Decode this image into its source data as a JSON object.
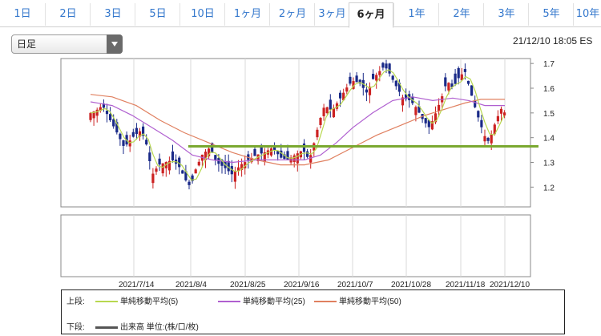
{
  "tabs": [
    {
      "label": "1日",
      "active": false
    },
    {
      "label": "2日",
      "active": false
    },
    {
      "label": "3日",
      "active": false
    },
    {
      "label": "5日",
      "active": false
    },
    {
      "label": "10日",
      "active": false
    },
    {
      "label": "1ヶ月",
      "active": false
    },
    {
      "label": "2ヶ月",
      "active": false
    },
    {
      "label": "3ヶ月",
      "active": false
    },
    {
      "label": "6ヶ月",
      "active": true
    },
    {
      "label": "1年",
      "active": false
    },
    {
      "label": "2年",
      "active": false
    },
    {
      "label": "3年",
      "active": false
    },
    {
      "label": "5年",
      "active": false
    },
    {
      "label": "10年",
      "active": false
    }
  ],
  "period_select": {
    "value": "日足"
  },
  "timestamp": "21/12/10 18:05 ES",
  "chart": {
    "y_ticks": [
      "1.7",
      "1.6",
      "1.5",
      "1.4",
      "1.3",
      "1.2"
    ],
    "x_ticks": [
      "2021/7/14",
      "2021/8/4",
      "2021/8/25",
      "2021/9/16",
      "2021/10/7",
      "2021/10/28",
      "2021/11/18",
      "2021/12/10"
    ],
    "support_line_value": 1.365,
    "colors": {
      "up": "#cc2222",
      "down": "#1a2a88",
      "ma5": "#b8d850",
      "ma25": "#b060d0",
      "ma50": "#e08060",
      "support": "#7aa830"
    }
  },
  "legend": {
    "upper_label": "上段:",
    "lower_label": "下段:",
    "ma5": "単純移動平均(5)",
    "ma25": "単純移動平均(25)",
    "ma50": "単純移動平均(50)",
    "volume": "出来高 単位:(株/口/枚)"
  },
  "chart_data": {
    "type": "candlestick",
    "ylim": [
      1.12,
      1.72
    ],
    "x": [
      "2021/7/14",
      "2021/8/4",
      "2021/8/25",
      "2021/9/16",
      "2021/10/7",
      "2021/10/28",
      "2021/11/18",
      "2021/12/10"
    ],
    "close_approx": [
      1.5,
      1.53,
      1.4,
      1.32,
      1.17,
      1.28,
      1.36,
      1.23,
      1.29,
      1.33,
      1.28,
      1.32,
      1.31,
      1.37,
      1.55,
      1.66,
      1.69,
      1.58,
      1.54,
      1.67,
      1.63,
      1.44,
      1.36,
      1.52,
      1.49
    ],
    "series": [
      {
        "name": "単純移動平均(5)"
      },
      {
        "name": "単純移動平均(25)"
      },
      {
        "name": "単純移動平均(50)"
      }
    ],
    "horizontal_line": 1.365
  }
}
